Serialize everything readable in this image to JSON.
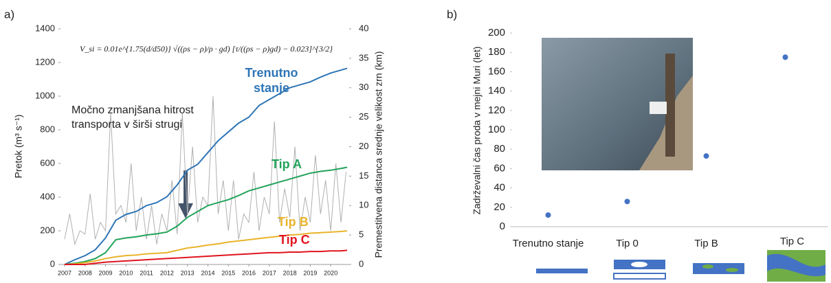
{
  "chart_data": [
    {
      "type": "line",
      "panel_label": "a)",
      "formula": "V_si = 0.01e^{1.75(d/d50)} √((ρs − ρ)/ρ · gd) [τ/((ρs − ρ)gd) − 0.023]^{3/2}",
      "annotation": "Močno zmanjšana hitrost transporta v širši strugi",
      "y_label": "Pretok (m³ s⁻¹)",
      "y2_label": "Premestitvena distanca srednje velikost zrn (km)",
      "xlim": [
        2006.8,
        2020.9
      ],
      "xticks": [
        2007,
        2008,
        2009,
        2010,
        2011,
        2012,
        2013,
        2014,
        2015,
        2016,
        2017,
        2018,
        2019,
        2020
      ],
      "ylim": [
        0,
        1400
      ],
      "yticks": [
        0,
        200,
        400,
        600,
        800,
        1000,
        1200,
        1400
      ],
      "y2lim": [
        0,
        40
      ],
      "y2ticks": [
        0,
        5,
        10,
        15,
        20,
        25,
        30,
        35,
        40
      ],
      "discharge": {
        "color": "#b0b0b0",
        "x": [
          2007,
          2007.25,
          2007.5,
          2007.75,
          2008,
          2008.25,
          2008.5,
          2008.75,
          2009,
          2009.25,
          2009.5,
          2009.75,
          2010,
          2010.25,
          2010.5,
          2010.75,
          2011,
          2011.25,
          2011.5,
          2011.75,
          2012,
          2012.25,
          2012.5,
          2012.75,
          2013,
          2013.25,
          2013.5,
          2013.75,
          2014,
          2014.25,
          2014.5,
          2014.75,
          2015,
          2015.25,
          2015.5,
          2015.75,
          2016,
          2016.25,
          2016.5,
          2016.75,
          2017,
          2017.25,
          2017.5,
          2017.75,
          2018,
          2018.25,
          2018.5,
          2018.75,
          2019,
          2019.25,
          2019.5,
          2019.75,
          2020,
          2020.25,
          2020.5,
          2020.75
        ],
        "values": [
          150,
          300,
          120,
          200,
          180,
          420,
          150,
          250,
          200,
          900,
          300,
          350,
          250,
          600,
          200,
          400,
          150,
          350,
          120,
          300,
          200,
          500,
          180,
          900,
          300,
          700,
          250,
          400,
          350,
          1000,
          300,
          500,
          200,
          500,
          150,
          300,
          250,
          550,
          200,
          400,
          300,
          850,
          250,
          450,
          280,
          700,
          200,
          400,
          250,
          650,
          300,
          500,
          200,
          600,
          250,
          550
        ]
      },
      "x": [
        2007,
        2007.5,
        2008,
        2008.5,
        2009,
        2009.5,
        2010,
        2010.5,
        2011,
        2011.5,
        2012,
        2012.5,
        2013,
        2013.5,
        2014,
        2014.5,
        2015,
        2015.5,
        2016,
        2016.5,
        2017,
        2017.5,
        2018,
        2018.5,
        2019,
        2019.5,
        2020,
        2020.5,
        2020.8
      ],
      "series": [
        {
          "name": "Trenutno stanje",
          "color": "#2e75b6",
          "axis": "y2",
          "values": [
            0,
            0.8,
            1.5,
            2.5,
            4.5,
            7.5,
            8.5,
            9,
            10,
            10.5,
            11.5,
            13.5,
            16,
            17,
            19,
            21,
            22.5,
            24,
            25,
            27,
            28,
            29,
            30,
            30.5,
            31,
            31.8,
            32.5,
            33,
            33.3
          ]
        },
        {
          "name": "Tip A",
          "color": "#21a35a",
          "axis": "y2",
          "values": [
            0,
            0.2,
            0.5,
            1,
            2,
            4.2,
            4.5,
            4.7,
            5,
            5.2,
            5.5,
            6.5,
            8,
            9,
            10,
            10.5,
            11,
            11.7,
            12.5,
            13,
            13.5,
            14,
            14.5,
            15,
            15.5,
            15.8,
            16,
            16.3,
            16.5
          ]
        },
        {
          "name": "Tip B",
          "color": "#e8b32a",
          "axis": "y2",
          "values": [
            0,
            0.1,
            0.3,
            0.6,
            1,
            1.3,
            1.5,
            1.6,
            1.8,
            1.9,
            2,
            2.4,
            2.8,
            3,
            3.3,
            3.5,
            3.8,
            4,
            4.2,
            4.4,
            4.6,
            4.8,
            5,
            5.1,
            5.3,
            5.4,
            5.5,
            5.6,
            5.7
          ]
        },
        {
          "name": "Tip C",
          "color": "#e0141e",
          "axis": "y2",
          "values": [
            0,
            0,
            0,
            0.2,
            0.4,
            0.5,
            0.6,
            0.7,
            0.8,
            0.9,
            1,
            1.1,
            1.2,
            1.3,
            1.4,
            1.5,
            1.6,
            1.7,
            1.8,
            1.9,
            2,
            2,
            2.1,
            2.1,
            2.2,
            2.2,
            2.3,
            2.3,
            2.4
          ]
        }
      ]
    },
    {
      "type": "scatter",
      "panel_label": "b)",
      "y_label": "Zadrževalni čas proda v mejni Muri (let)",
      "categories": [
        "Trenutno stanje",
        "Tip 0",
        "Tip B",
        "Tip C"
      ],
      "values": [
        12,
        26,
        73,
        175
      ],
      "color": "#4472c4",
      "ylim": [
        0,
        200
      ],
      "yticks": [
        0,
        20,
        40,
        60,
        80,
        100,
        120,
        140,
        160,
        180,
        200
      ]
    }
  ]
}
